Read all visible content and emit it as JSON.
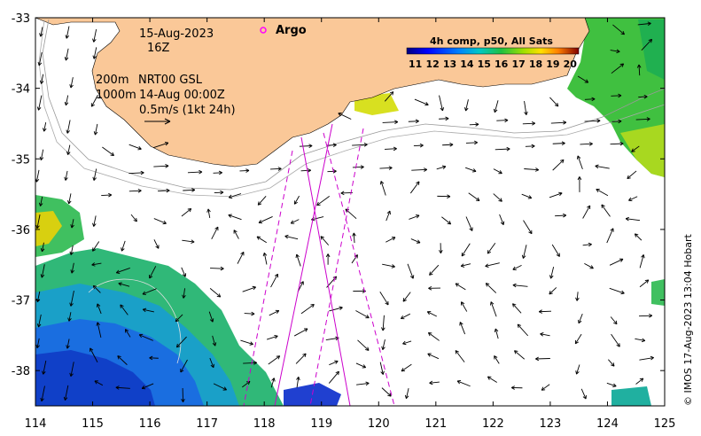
{
  "map": {
    "region": "South-west Western Australia",
    "date_label": "15-Aug-2023",
    "hour_label": "16Z",
    "contour_label_1": "200m",
    "contour_label_2": "1000m",
    "product_label": "NRT00 GSL",
    "product_time": "14-Aug 00:00Z",
    "scale_label": "0.5m/s (1kt 24h)",
    "argo_label": "Argo",
    "credit": "© IMOS 17-Aug-2023 13:04 Hobart",
    "x_ticks": [
      "114",
      "115",
      "116",
      "117",
      "118",
      "119",
      "120",
      "121",
      "122",
      "123",
      "124",
      "125"
    ],
    "y_ticks": [
      "-33",
      "-34",
      "-35",
      "-36",
      "-37",
      "-38"
    ],
    "xlim": [
      114,
      125
    ],
    "ylim": [
      -38.5,
      -33
    ]
  },
  "colorbar": {
    "title": "4h comp, p50, All Sats",
    "ticks": [
      "11",
      "12",
      "13",
      "14",
      "15",
      "16",
      "17",
      "18",
      "19",
      "20"
    ],
    "min": 10.5,
    "max": 20.5
  },
  "colors": {
    "land": "#fac898",
    "argo": "#ff00ff",
    "track": "#cc00cc"
  }
}
